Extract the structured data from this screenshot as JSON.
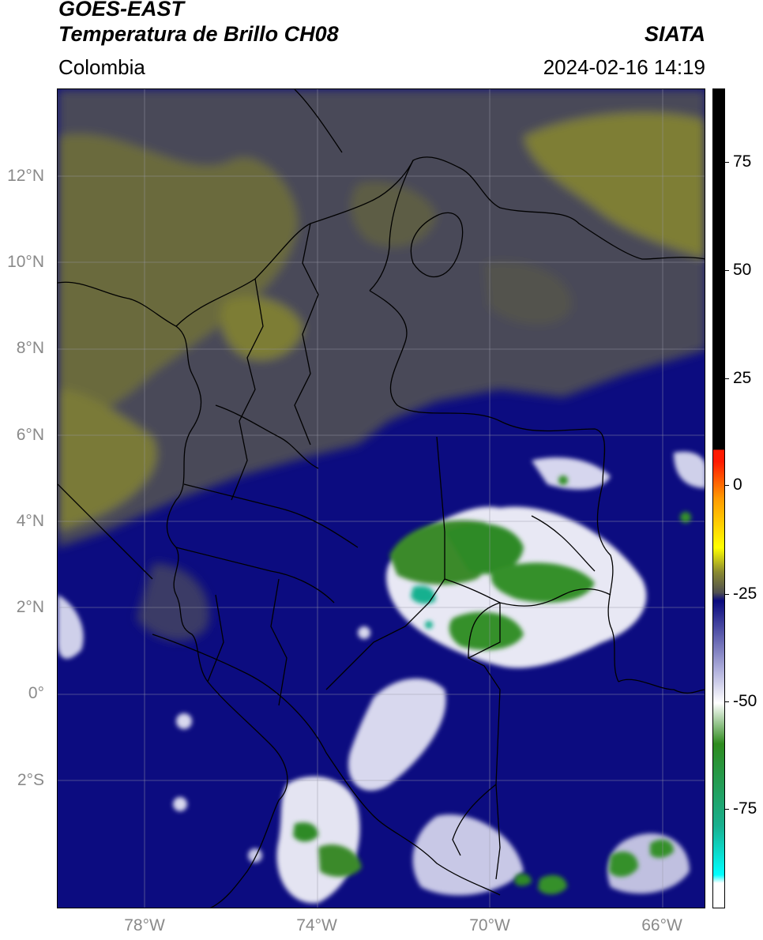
{
  "header": {
    "satellite": "GOES-EAST",
    "product": "Temperatura de Brillo CH08",
    "organization": "SIATA",
    "region": "Colombia",
    "datetime": "2024-02-16 14:19"
  },
  "map": {
    "lon_range": [
      -80,
      -65
    ],
    "lat_range": [
      -5,
      14
    ],
    "gridlines": true,
    "lat_ticks": [
      {
        "value": 12,
        "label": "12°N"
      },
      {
        "value": 10,
        "label": "10°N"
      },
      {
        "value": 8,
        "label": "8°N"
      },
      {
        "value": 6,
        "label": "6°N"
      },
      {
        "value": 4,
        "label": "4°N"
      },
      {
        "value": 2,
        "label": "2°N"
      },
      {
        "value": 0,
        "label": "0°"
      },
      {
        "value": -2,
        "label": "2°S"
      }
    ],
    "lon_ticks": [
      {
        "value": -78,
        "label": "78°W"
      },
      {
        "value": -74,
        "label": "74°W"
      },
      {
        "value": -70,
        "label": "70°W"
      },
      {
        "value": -66,
        "label": "66°W"
      }
    ]
  },
  "colorbar": {
    "range": [
      -95,
      90
    ],
    "ticks": [
      {
        "value": 75,
        "label": "75"
      },
      {
        "value": 50,
        "label": "50"
      },
      {
        "value": 25,
        "label": "25"
      },
      {
        "value": 0,
        "label": "0"
      },
      {
        "value": -25,
        "label": "-25"
      },
      {
        "value": -50,
        "label": "-50"
      },
      {
        "value": -75,
        "label": "-75"
      }
    ],
    "colors": {
      "high": "#000000",
      "red": "#ff1a00",
      "orange": "#ff9a00",
      "yellow": "#ffff00",
      "olive": "#8a8a30",
      "gray": "#505050",
      "navy": "#0a0a7e",
      "lavender": "#b0b0dc",
      "white": "#ffffff",
      "green": "#2e8b1e",
      "teal": "#19b08f",
      "cyan": "#00ffff"
    }
  }
}
